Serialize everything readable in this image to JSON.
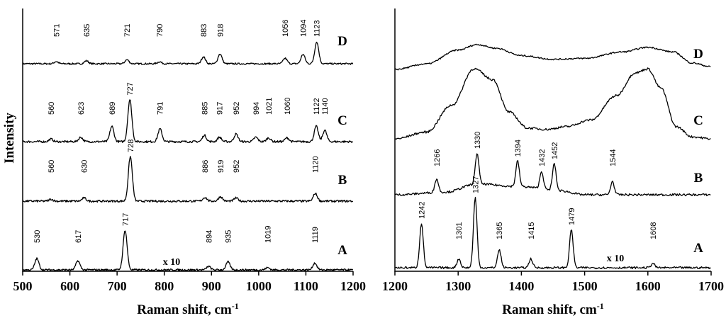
{
  "figure": {
    "ylabel": "Intensity",
    "superscript": "-1"
  },
  "chart_data": [
    {
      "type": "line",
      "xlabel": "Raman shift, cm",
      "ylabel": "Intensity",
      "xlim": [
        500,
        1200
      ],
      "xticks": [
        500,
        600,
        700,
        800,
        900,
        1000,
        1100,
        1200
      ],
      "scale_note": {
        "text": "x 10",
        "x": 815
      },
      "series": [
        {
          "name": "D",
          "peaks": [
            [
              571,
              0.22
            ],
            [
              635,
              0.3
            ],
            [
              721,
              0.4
            ],
            [
              790,
              0.2
            ],
            [
              883,
              0.7
            ],
            [
              918,
              1.0
            ],
            [
              1056,
              0.55
            ],
            [
              1094,
              0.95
            ],
            [
              1123,
              2.2
            ]
          ],
          "labels": [
            "571",
            "635",
            "721",
            "790",
            "883",
            "918",
            "1056",
            "1094",
            "1123"
          ],
          "shape": []
        },
        {
          "name": "C",
          "peaks": [
            [
              560,
              0.2
            ],
            [
              623,
              0.35
            ],
            [
              689,
              1.2
            ],
            [
              727,
              3.3
            ],
            [
              791,
              1.0
            ],
            [
              885,
              0.5
            ],
            [
              917,
              0.35
            ],
            [
              952,
              0.6
            ],
            [
              994,
              0.35
            ],
            [
              1021,
              0.3
            ],
            [
              1060,
              0.3
            ],
            [
              1122,
              1.2
            ],
            [
              1140,
              0.9
            ]
          ],
          "labels": [
            "560",
            "623",
            "689",
            "727",
            "791",
            "885",
            "917",
            "952",
            "994",
            "1021",
            "1060",
            "1122",
            "1140"
          ],
          "shape": []
        },
        {
          "name": "B",
          "peaks": [
            [
              560,
              0.15
            ],
            [
              630,
              0.25
            ],
            [
              728,
              3.5
            ],
            [
              886,
              0.3
            ],
            [
              919,
              0.35
            ],
            [
              952,
              0.25
            ],
            [
              1120,
              0.6
            ]
          ],
          "labels": [
            "560",
            "630",
            "728",
            "886",
            "919",
            "952",
            "1120"
          ],
          "shape": []
        },
        {
          "name": "A",
          "peaks": [
            [
              530,
              1.0
            ],
            [
              617,
              0.8
            ],
            [
              717,
              3.5
            ],
            [
              894,
              0.3
            ],
            [
              935,
              0.7
            ],
            [
              1019,
              0.2
            ],
            [
              1119,
              0.6
            ]
          ],
          "labels": [
            "530",
            "617",
            "717",
            "894",
            "935",
            "1019",
            "1119"
          ],
          "shape": []
        }
      ]
    },
    {
      "type": "line",
      "xlabel": "Raman shift, cm",
      "xlim": [
        1200,
        1700
      ],
      "xticks": [
        1200,
        1300,
        1400,
        1500,
        1600,
        1700
      ],
      "scale_note": {
        "text": "x 10",
        "x": 1555
      },
      "series": [
        {
          "name": "D",
          "peaks": [],
          "labels": [],
          "shape": [
            [
              1200,
              0.0
            ],
            [
              1250,
              0.6
            ],
            [
              1300,
              2.1
            ],
            [
              1330,
              2.7
            ],
            [
              1360,
              2.3
            ],
            [
              1400,
              1.5
            ],
            [
              1450,
              1.1
            ],
            [
              1500,
              1.2
            ],
            [
              1560,
              1.9
            ],
            [
              1600,
              2.4
            ],
            [
              1640,
              1.9
            ],
            [
              1670,
              0.7
            ],
            [
              1700,
              0.3
            ]
          ]
        },
        {
          "name": "C",
          "peaks": [],
          "labels": [],
          "shape": [
            [
              1200,
              0.0
            ],
            [
              1250,
              0.5
            ],
            [
              1290,
              2.5
            ],
            [
              1325,
              5.2
            ],
            [
              1355,
              4.4
            ],
            [
              1380,
              2.0
            ],
            [
              1410,
              0.8
            ],
            [
              1440,
              0.7
            ],
            [
              1470,
              0.9
            ],
            [
              1510,
              1.4
            ],
            [
              1550,
              3.2
            ],
            [
              1580,
              4.9
            ],
            [
              1600,
              5.2
            ],
            [
              1620,
              3.8
            ],
            [
              1645,
              0.9
            ],
            [
              1670,
              0.15
            ],
            [
              1700,
              0.0
            ]
          ]
        },
        {
          "name": "B",
          "peaks": [
            [
              1266,
              1.0
            ],
            [
              1330,
              2.3
            ],
            [
              1394,
              1.9
            ],
            [
              1432,
              1.3
            ],
            [
              1452,
              2.0
            ],
            [
              1544,
              1.0
            ]
          ],
          "labels": [
            "1266",
            "1330",
            "1394",
            "1432",
            "1452",
            "1544"
          ],
          "shape": [
            [
              1200,
              0.0
            ],
            [
              1280,
              0.2
            ],
            [
              1330,
              0.8
            ],
            [
              1400,
              0.6
            ],
            [
              1460,
              0.3
            ],
            [
              1500,
              0.0
            ],
            [
              1700,
              0.0
            ]
          ]
        },
        {
          "name": "A",
          "peaks": [
            [
              1242,
              3.5
            ],
            [
              1301,
              0.7
            ],
            [
              1327,
              5.5
            ],
            [
              1365,
              1.4
            ],
            [
              1415,
              0.7
            ],
            [
              1479,
              3.0
            ],
            [
              1608,
              0.35
            ]
          ],
          "labels": [
            "1242",
            "1301",
            "1327",
            "1365",
            "1415",
            "1479",
            "1608"
          ],
          "shape": []
        }
      ]
    }
  ]
}
